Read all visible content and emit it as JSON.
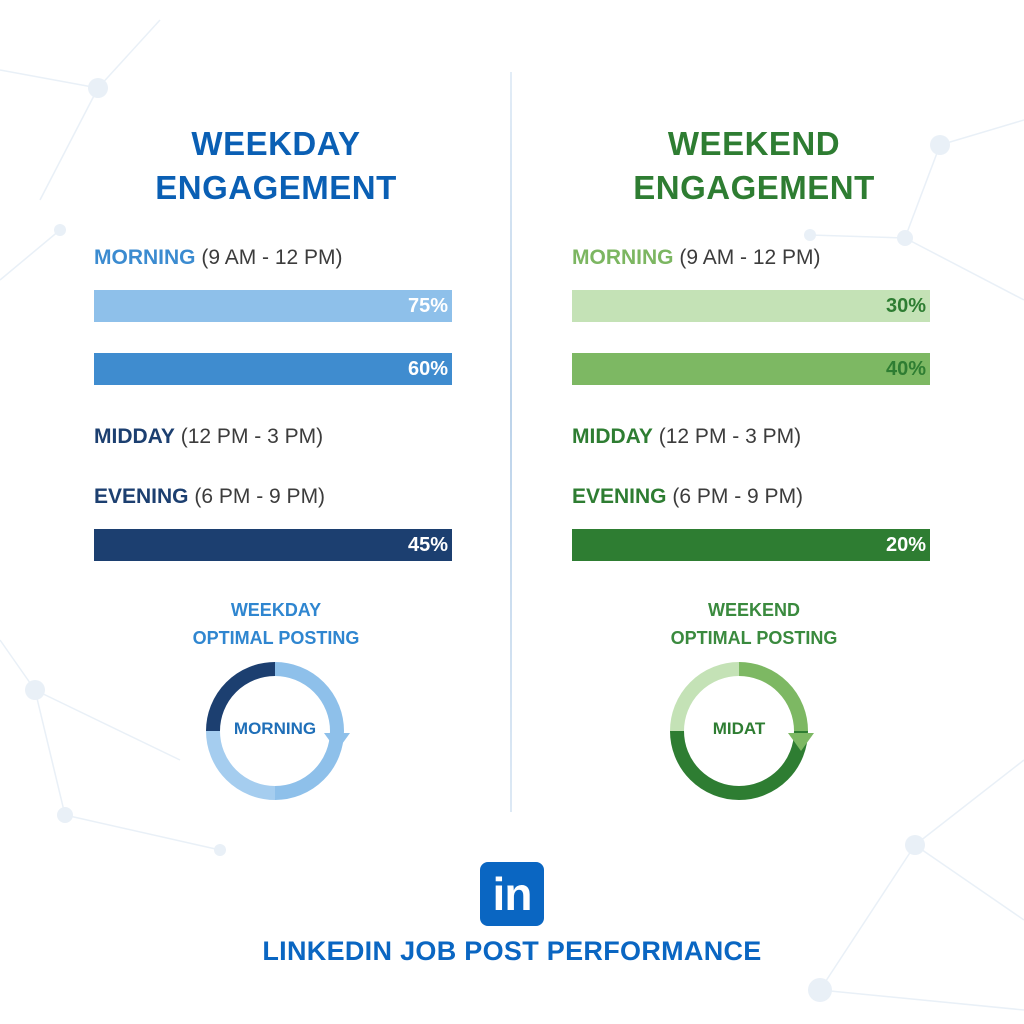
{
  "colors": {
    "weekday_title": "#0a5fb4",
    "weekend_title": "#2e7d32",
    "weekday_morning_label": "#3b8bd0",
    "weekday_dark_label": "#1c3f70",
    "weekend_morning_label": "#7cb661",
    "weekend_dark_label": "#2e7d32"
  },
  "weekday": {
    "title_line1": "WEEKDAY",
    "title_line2": "ENGAGEMENT",
    "rows": [
      {
        "slot": "MORNING",
        "range": "(9 AM - 12 PM)"
      },
      {
        "slot": "MIDDAY",
        "range": "(12 PM - 3 PM)"
      },
      {
        "slot": "EVENING",
        "range": "(6 PM - 9 PM)"
      }
    ],
    "optimal_line1": "WEEKDAY",
    "optimal_line2": "OPTIMAL POSTING",
    "optimal_value": "MORNING"
  },
  "weekend": {
    "title_line1": "WEEKEND",
    "title_line2": "ENGAGEMENT",
    "rows": [
      {
        "slot": "MORNING",
        "range": "(9 AM - 12 PM)"
      },
      {
        "slot": "MIDDAY",
        "range": "(12 PM - 3 PM)"
      },
      {
        "slot": "EVENING",
        "range": "(6 PM - 9 PM)"
      }
    ],
    "optimal_line1": "WEEKEND",
    "optimal_line2": "OPTIMAL POSTING",
    "optimal_value": "MIDAT"
  },
  "chart_data": [
    {
      "type": "bar",
      "title": "WEEKDAY ENGAGEMENT",
      "bars": [
        {
          "label": "75%",
          "value": 75,
          "color": "#8ec0ea",
          "text_color": "#ffffff"
        },
        {
          "label": "60%",
          "value": 60,
          "color": "#3f8ccf",
          "text_color": "#ffffff"
        },
        {
          "label": "45%",
          "value": 45,
          "color": "#1c3f70",
          "text_color": "#ffffff"
        }
      ]
    },
    {
      "type": "bar",
      "title": "WEEKEND ENGAGEMENT",
      "bars": [
        {
          "label": "30%",
          "value": 30,
          "color": "#c4e2b6",
          "text_color": "#2e7d32"
        },
        {
          "label": "40%",
          "value": 40,
          "color": "#7db863",
          "text_color": "#2e7d32"
        },
        {
          "label": "20%",
          "value": 20,
          "color": "#2e7d32",
          "text_color": "#ffffff"
        }
      ]
    },
    {
      "type": "pie",
      "title": "WEEKDAY OPTIMAL POSTING",
      "segments": [
        {
          "fraction": 0.5,
          "color": "#8ec0ea"
        },
        {
          "fraction": 0.25,
          "color": "#a5cdef"
        },
        {
          "fraction": 0.25,
          "color": "#1c3f70"
        }
      ]
    },
    {
      "type": "pie",
      "title": "WEEKEND OPTIMAL POSTING",
      "segments": [
        {
          "fraction": 0.25,
          "color": "#7db863"
        },
        {
          "fraction": 0.5,
          "color": "#2e7d32"
        },
        {
          "fraction": 0.25,
          "color": "#c4e2b6"
        }
      ]
    }
  ],
  "footer": {
    "logo_text": "in",
    "title": "LINKEDIN JOB POST PERFORMANCE"
  }
}
